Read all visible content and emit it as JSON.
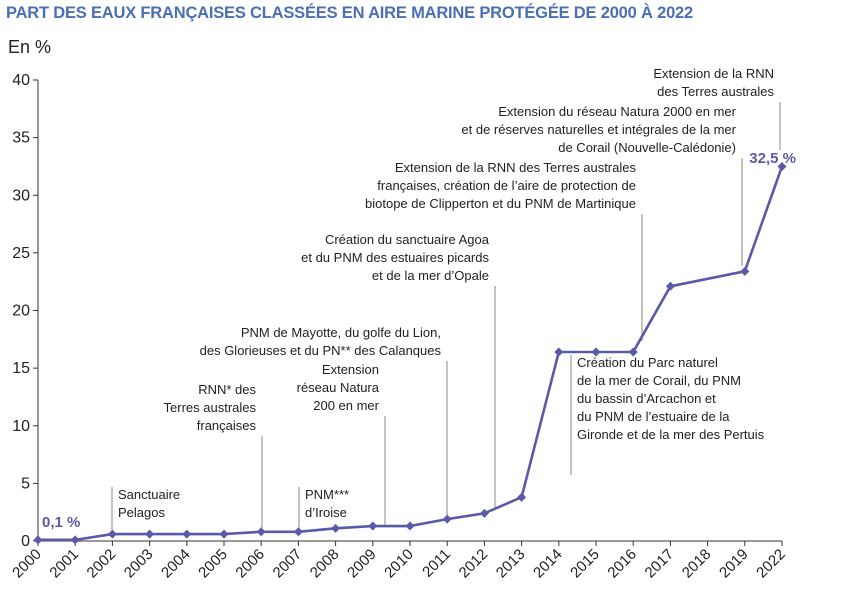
{
  "chart_data": {
    "type": "line",
    "title": "PART DES EAUX FRANÇAISES CLASSÉES EN AIRE MARINE PROTÉGÉE DE 2000 À 2022",
    "ylabel": "En %",
    "xlabel": "",
    "ylim": [
      0,
      40
    ],
    "yticks": [
      "0",
      "5",
      "10",
      "15",
      "20",
      "25",
      "30",
      "35",
      "40"
    ],
    "categories": [
      "2000",
      "2001",
      "2002",
      "2003",
      "2004",
      "2005",
      "2006",
      "2007",
      "2008",
      "2009",
      "2010",
      "2011",
      "2012",
      "2013",
      "2014",
      "2015",
      "2016",
      "2017",
      "2018",
      "2019",
      "2022"
    ],
    "series": [
      {
        "name": "Part des eaux classées en AMP",
        "x": [
          "2000",
          "2001",
          "2002",
          "2003",
          "2004",
          "2005",
          "2006",
          "2007",
          "2008",
          "2009",
          "2010",
          "2011",
          "2012",
          "2013",
          "2014",
          "2015",
          "2016",
          "2017",
          "2019",
          "2022"
        ],
        "values": [
          0.1,
          0.1,
          0.6,
          0.6,
          0.6,
          0.6,
          0.8,
          0.8,
          1.1,
          1.3,
          1.3,
          1.9,
          2.4,
          3.8,
          16.4,
          16.4,
          16.4,
          22.1,
          23.4,
          32.5
        ],
        "color": "#5a5aa8"
      }
    ],
    "data_labels": [
      {
        "text": "0,1 %",
        "year": "2000"
      },
      {
        "text": "32,5 %",
        "year": "2022"
      }
    ],
    "annotations": [
      {
        "year": "2002",
        "align": "left",
        "lines": [
          "Sanctuaire",
          "Pelagos"
        ]
      },
      {
        "year": "2006",
        "align": "right",
        "lines": [
          "RNN* des",
          "Terres australes",
          "françaises"
        ]
      },
      {
        "year": "2007",
        "align": "left",
        "lines": [
          "PNM***",
          "d’Iroise"
        ]
      },
      {
        "year": "2009",
        "align": "right",
        "lines": [
          "Extension",
          "réseau Natura",
          "200 en mer"
        ]
      },
      {
        "year": "2011",
        "align": "right",
        "lines": [
          "PNM de Mayotte, du golfe du Lion,",
          "des Glorieuses et du PN** des Calanques"
        ]
      },
      {
        "year": "2012",
        "align": "right",
        "lines": [
          "Création du sanctuaire Agoa",
          "et du PNM des estuaires picards",
          "et de la mer d’Opale"
        ]
      },
      {
        "year": "2014",
        "align": "left",
        "lines": [
          "Création du Parc naturel",
          "de la mer de Corail, du PNM",
          "du bassin d’Arcachon et",
          "du PNM de l’estuaire de la",
          "Gironde et de la mer des Pertuis"
        ]
      },
      {
        "year": "2016",
        "align": "right",
        "lines": [
          "Extension de la RNN des Terres australes",
          "françaises, création de l’aire de protection de",
          "biotope de Clipperton et du PNM de Martinique"
        ]
      },
      {
        "year": "2019",
        "align": "right",
        "lines": [
          "Extension du réseau Natura 2000 en mer",
          "et de réserves naturelles et intégrales de la mer",
          "de Corail (Nouvelle-Calédonie)"
        ]
      },
      {
        "year": "2022",
        "align": "right",
        "lines": [
          "Extension de la RNN",
          "des Terres australes"
        ]
      }
    ]
  }
}
